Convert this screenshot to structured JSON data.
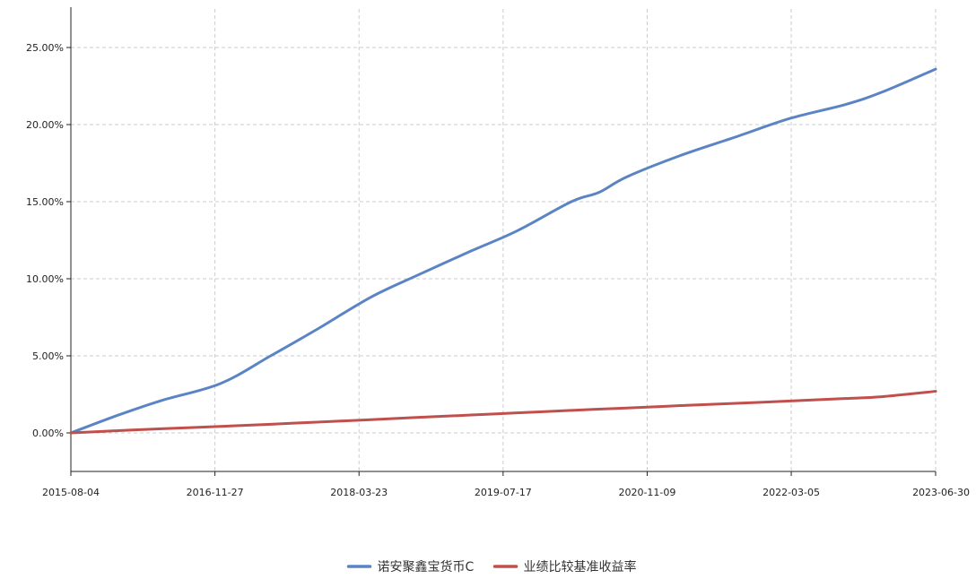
{
  "chart_data": {
    "type": "line",
    "x_dates": [
      "2015-08-04",
      "2016-01-01",
      "2016-06-01",
      "2016-12-15",
      "2017-06-01",
      "2017-11-01",
      "2018-05-01",
      "2018-10-01",
      "2019-04-01",
      "2019-09-01",
      "2020-03-01",
      "2020-06-01",
      "2020-09-01",
      "2021-03-01",
      "2021-09-01",
      "2022-03-01",
      "2022-09-01",
      "2023-01-01",
      "2023-06-30"
    ],
    "series": [
      {
        "name": "诺安聚鑫宝货币C",
        "color": "#5B84C4",
        "values": [
          0.0,
          1.1,
          2.1,
          3.2,
          5.0,
          6.7,
          8.8,
          10.2,
          11.8,
          13.1,
          15.0,
          15.6,
          16.6,
          18.0,
          19.2,
          20.4,
          21.3,
          22.1,
          23.6
        ]
      },
      {
        "name": "业绩比较基准收益率",
        "color": "#C0504D",
        "values": [
          0.0,
          0.14,
          0.27,
          0.42,
          0.56,
          0.7,
          0.86,
          1.0,
          1.16,
          1.3,
          1.46,
          1.54,
          1.61,
          1.77,
          1.92,
          2.07,
          2.23,
          2.35,
          2.7
        ]
      }
    ],
    "x_ticks": [
      "2015-08-04",
      "2016-11-27",
      "2018-03-23",
      "2019-07-17",
      "2020-11-09",
      "2022-03-05",
      "2023-06-30"
    ],
    "y_ticks": [
      "0.00%",
      "5.00%",
      "10.00%",
      "15.00%",
      "20.00%",
      "25.00%"
    ],
    "y_tick_values": [
      0,
      5,
      10,
      15,
      20,
      25
    ],
    "ylim": [
      -2.5,
      27.5
    ],
    "xlim": [
      "2015-08-04",
      "2023-06-30"
    ],
    "grid": true,
    "legend_position": "bottom-center"
  }
}
